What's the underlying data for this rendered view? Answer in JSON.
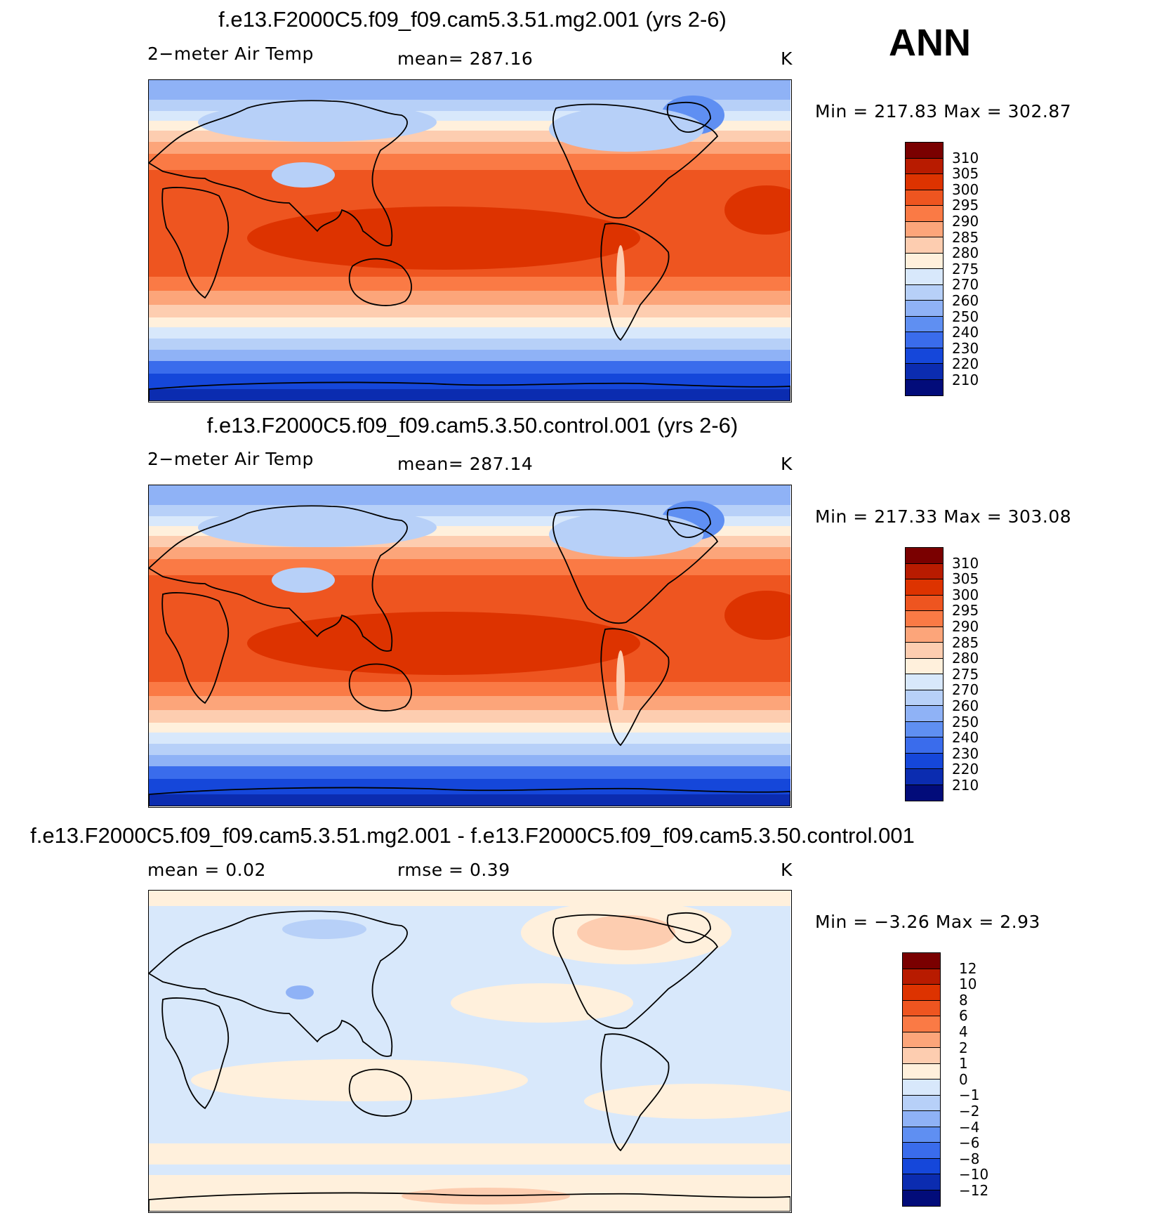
{
  "annual_label": "ANN",
  "panels": [
    {
      "title": "f.e13.F2000C5.f09_f09.cam5.3.51.mg2.001 (yrs 2-6)",
      "variable": "2−meter Air Temp",
      "stat": "mean=  287.16",
      "units": "K",
      "minmax": "Min  =  217.83  Max  =  302.87",
      "map_style": "absolute"
    },
    {
      "title": "f.e13.F2000C5.f09_f09.cam5.3.50.control.001 (yrs 2-6)",
      "variable": "2−meter Air Temp",
      "stat": "mean=  287.14",
      "units": "K",
      "minmax": "Min  =  217.33  Max  =  303.08",
      "map_style": "absolute"
    },
    {
      "title": "f.e13.F2000C5.f09_f09.cam5.3.51.mg2.001 - f.e13.F2000C5.f09_f09.cam5.3.50.control.001",
      "variable": "mean =      0.02",
      "stat": "rmse =      0.39",
      "units": "K",
      "minmax": "Min  =    −3.26  Max  =      2.93",
      "map_style": "difference"
    }
  ],
  "colorbar_abs": {
    "labels": [
      "310",
      "305",
      "300",
      "295",
      "290",
      "285",
      "280",
      "275",
      "270",
      "260",
      "250",
      "240",
      "230",
      "220",
      "210"
    ],
    "colors": [
      "#7a0000",
      "#b81b00",
      "#dd3300",
      "#ee5520",
      "#fa7a45",
      "#fca57a",
      "#fdcdb0",
      "#fff0dc",
      "#d8e8fb",
      "#b7d0f8",
      "#8fb2f6",
      "#5f8ff2",
      "#3a6cec",
      "#1547da",
      "#0b2cb0",
      "#020c7a"
    ]
  },
  "colorbar_diff": {
    "labels": [
      "12",
      "10",
      "8",
      "6",
      "4",
      "2",
      "1",
      "0",
      "−1",
      "−2",
      "−4",
      "−6",
      "−8",
      "−10",
      "−12"
    ],
    "colors": [
      "#7a0000",
      "#b81b00",
      "#dd3300",
      "#ee5520",
      "#fa7a45",
      "#fca57a",
      "#fdcdb0",
      "#fff0dc",
      "#d8e8fb",
      "#b7d0f8",
      "#8fb2f6",
      "#5f8ff2",
      "#3a6cec",
      "#1547da",
      "#0b2cb0",
      "#020c7a"
    ]
  }
}
